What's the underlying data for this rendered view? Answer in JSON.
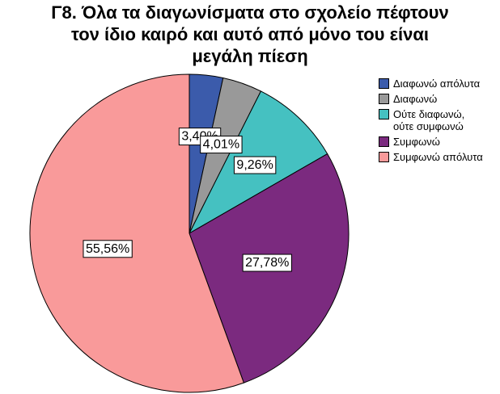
{
  "chart_data": {
    "type": "pie",
    "title_lines": [
      "Γ8. Όλα τα διαγωνίσματα στο σχολείο πέφτουν",
      "τον  ίδιο καιρό και αυτό από μόνο του είναι",
      "μεγάλη πίεση"
    ],
    "slices": [
      {
        "label": "Διαφωνώ απόλυτα",
        "value": 3.4,
        "data_label": "3,40%",
        "color": "#3b5bab"
      },
      {
        "label": "Διαφωνώ",
        "value": 4.01,
        "data_label": "4,01%",
        "color": "#999999"
      },
      {
        "label": "Ούτε διαφωνώ,\nούτε συμφωνώ",
        "value": 9.26,
        "data_label": "9,26%",
        "color": "#45c1c1"
      },
      {
        "label": "Συμφωνώ",
        "value": 27.78,
        "data_label": "27,78%",
        "color": "#7b2a7f"
      },
      {
        "label": "Συμφωνώ απόλυτα",
        "value": 55.56,
        "data_label": "55,56%",
        "color": "#f99a9a"
      }
    ],
    "legend_position": "right"
  }
}
